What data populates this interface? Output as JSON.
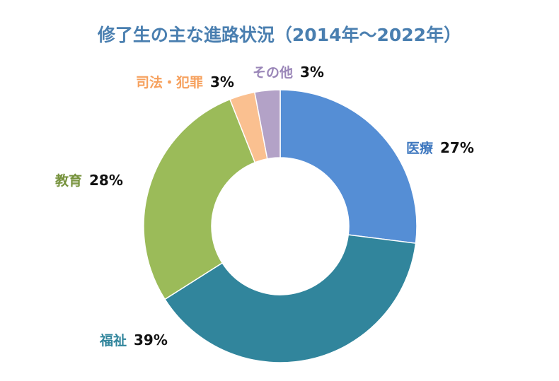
{
  "chart_data": {
    "type": "pie",
    "title": "修了生の主な進路状況（2014年～2022年）",
    "slices": [
      {
        "label": "医療",
        "value": 27,
        "value_label": "27%",
        "color": "#558ed5",
        "label_color": "#3f78bf"
      },
      {
        "label": "福祉",
        "value": 39,
        "value_label": "39%",
        "color": "#31859c",
        "label_color": "#31859c"
      },
      {
        "label": "教育",
        "value": 28,
        "value_label": "28%",
        "color": "#9bbb59",
        "label_color": "#76923c"
      },
      {
        "label": "司法・犯罪",
        "value": 3,
        "value_label": "3%",
        "color": "#fac090",
        "label_color": "#f6a15e"
      },
      {
        "label": "その他",
        "value": 3,
        "value_label": "3%",
        "color": "#b3a2c7",
        "label_color": "#9a86b8"
      }
    ],
    "legend": false
  }
}
